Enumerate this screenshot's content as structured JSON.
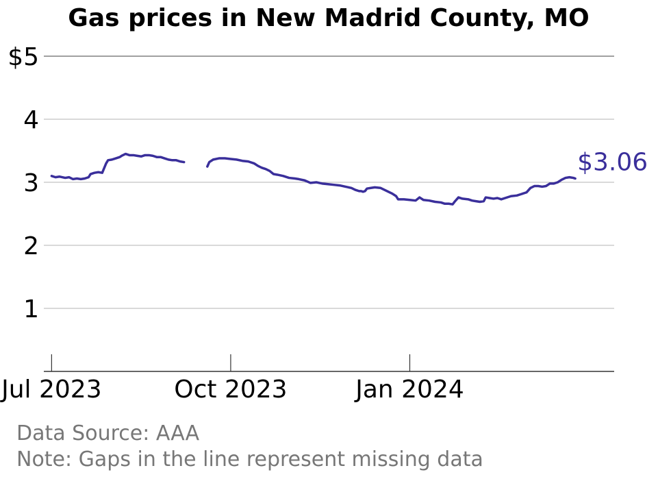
{
  "chart_data": {
    "type": "line",
    "title": "Gas prices in New Madrid County, MO",
    "xlabel": "",
    "ylabel": "",
    "x_range": [
      "2023-06-27",
      "2024-04-15"
    ],
    "ylim": [
      0,
      5
    ],
    "y_ticks": [
      {
        "value": 5,
        "label": "$5"
      },
      {
        "value": 4,
        "label": "4"
      },
      {
        "value": 3,
        "label": "3"
      },
      {
        "value": 2,
        "label": "2"
      },
      {
        "value": 1,
        "label": "1"
      }
    ],
    "x_ticks": [
      {
        "date": "2023-07-01",
        "label": "Jul 2023"
      },
      {
        "date": "2023-10-01",
        "label": "Oct 2023"
      },
      {
        "date": "2024-01-01",
        "label": "Jan 2024"
      }
    ],
    "grid": true,
    "line_color": "#3a2f9b",
    "end_label": "$3.06",
    "series": [
      {
        "segments": [
          [
            [
              "2023-07-01",
              3.1
            ],
            [
              "2023-07-03",
              3.08
            ],
            [
              "2023-07-05",
              3.09
            ],
            [
              "2023-07-08",
              3.07
            ],
            [
              "2023-07-10",
              3.08
            ],
            [
              "2023-07-12",
              3.05
            ],
            [
              "2023-07-14",
              3.06
            ],
            [
              "2023-07-16",
              3.05
            ],
            [
              "2023-07-18",
              3.06
            ],
            [
              "2023-07-20",
              3.08
            ],
            [
              "2023-07-21",
              3.13
            ],
            [
              "2023-07-23",
              3.15
            ],
            [
              "2023-07-25",
              3.16
            ],
            [
              "2023-07-27",
              3.15
            ],
            [
              "2023-07-29",
              3.3
            ],
            [
              "2023-07-30",
              3.35
            ],
            [
              "2023-08-01",
              3.36
            ],
            [
              "2023-08-03",
              3.38
            ],
            [
              "2023-08-05",
              3.4
            ],
            [
              "2023-08-06",
              3.42
            ],
            [
              "2023-08-08",
              3.45
            ],
            [
              "2023-08-10",
              3.43
            ],
            [
              "2023-08-12",
              3.43
            ],
            [
              "2023-08-14",
              3.42
            ],
            [
              "2023-08-16",
              3.41
            ],
            [
              "2023-08-18",
              3.43
            ],
            [
              "2023-08-20",
              3.43
            ],
            [
              "2023-08-22",
              3.42
            ],
            [
              "2023-08-24",
              3.4
            ],
            [
              "2023-08-26",
              3.4
            ],
            [
              "2023-08-28",
              3.38
            ],
            [
              "2023-08-30",
              3.36
            ],
            [
              "2023-09-01",
              3.35
            ],
            [
              "2023-09-03",
              3.35
            ],
            [
              "2023-09-05",
              3.33
            ],
            [
              "2023-09-07",
              3.32
            ]
          ],
          [
            [
              "2023-09-19",
              3.25
            ],
            [
              "2023-09-20",
              3.32
            ],
            [
              "2023-09-22",
              3.36
            ],
            [
              "2023-09-25",
              3.38
            ],
            [
              "2023-09-28",
              3.38
            ],
            [
              "2023-10-01",
              3.37
            ],
            [
              "2023-10-04",
              3.36
            ],
            [
              "2023-10-07",
              3.34
            ],
            [
              "2023-10-10",
              3.33
            ],
            [
              "2023-10-13",
              3.3
            ],
            [
              "2023-10-15",
              3.26
            ],
            [
              "2023-10-17",
              3.23
            ],
            [
              "2023-10-19",
              3.21
            ],
            [
              "2023-10-21",
              3.18
            ],
            [
              "2023-10-23",
              3.13
            ],
            [
              "2023-10-25",
              3.12
            ],
            [
              "2023-10-28",
              3.1
            ],
            [
              "2023-10-31",
              3.07
            ],
            [
              "2023-11-03",
              3.06
            ],
            [
              "2023-11-05",
              3.05
            ],
            [
              "2023-11-08",
              3.03
            ],
            [
              "2023-11-11",
              2.99
            ],
            [
              "2023-11-14",
              3.0
            ],
            [
              "2023-11-17",
              2.98
            ],
            [
              "2023-11-20",
              2.97
            ],
            [
              "2023-11-23",
              2.96
            ],
            [
              "2023-11-26",
              2.95
            ],
            [
              "2023-11-29",
              2.93
            ],
            [
              "2023-12-02",
              2.91
            ],
            [
              "2023-12-04",
              2.88
            ],
            [
              "2023-12-06",
              2.86
            ],
            [
              "2023-12-07",
              2.86
            ],
            [
              "2023-12-08",
              2.85
            ],
            [
              "2023-12-09",
              2.86
            ],
            [
              "2023-12-10",
              2.9
            ],
            [
              "2023-12-12",
              2.91
            ],
            [
              "2023-12-14",
              2.92
            ],
            [
              "2023-12-17",
              2.91
            ],
            [
              "2023-12-19",
              2.88
            ],
            [
              "2023-12-21",
              2.85
            ],
            [
              "2023-12-23",
              2.82
            ],
            [
              "2023-12-25",
              2.78
            ],
            [
              "2023-12-26",
              2.73
            ],
            [
              "2023-12-29",
              2.73
            ],
            [
              "2024-01-01",
              2.72
            ],
            [
              "2024-01-04",
              2.71
            ],
            [
              "2024-01-06",
              2.76
            ],
            [
              "2024-01-08",
              2.72
            ],
            [
              "2024-01-11",
              2.71
            ],
            [
              "2024-01-14",
              2.69
            ],
            [
              "2024-01-17",
              2.68
            ],
            [
              "2024-01-19",
              2.66
            ],
            [
              "2024-01-21",
              2.66
            ],
            [
              "2024-01-23",
              2.65
            ],
            [
              "2024-01-24",
              2.69
            ],
            [
              "2024-01-26",
              2.76
            ],
            [
              "2024-01-28",
              2.74
            ],
            [
              "2024-01-31",
              2.73
            ],
            [
              "2024-02-02",
              2.71
            ],
            [
              "2024-02-04",
              2.7
            ],
            [
              "2024-02-06",
              2.69
            ],
            [
              "2024-02-08",
              2.7
            ],
            [
              "2024-02-09",
              2.76
            ],
            [
              "2024-02-11",
              2.75
            ],
            [
              "2024-02-13",
              2.74
            ],
            [
              "2024-02-15",
              2.75
            ],
            [
              "2024-02-17",
              2.73
            ],
            [
              "2024-02-19",
              2.75
            ],
            [
              "2024-02-22",
              2.78
            ],
            [
              "2024-02-25",
              2.79
            ],
            [
              "2024-02-27",
              2.81
            ],
            [
              "2024-02-29",
              2.83
            ],
            [
              "2024-03-01",
              2.84
            ],
            [
              "2024-03-03",
              2.91
            ],
            [
              "2024-03-05",
              2.94
            ],
            [
              "2024-03-07",
              2.94
            ],
            [
              "2024-03-09",
              2.93
            ],
            [
              "2024-03-11",
              2.94
            ],
            [
              "2024-03-13",
              2.98
            ],
            [
              "2024-03-15",
              2.98
            ],
            [
              "2024-03-17",
              3.0
            ],
            [
              "2024-03-19",
              3.04
            ],
            [
              "2024-03-21",
              3.07
            ],
            [
              "2024-03-23",
              3.08
            ],
            [
              "2024-03-25",
              3.07
            ],
            [
              "2024-03-26",
              3.06
            ]
          ]
        ]
      }
    ]
  },
  "footer": {
    "source": "Data Source: AAA",
    "note": "Note: Gaps in the line represent missing data"
  }
}
